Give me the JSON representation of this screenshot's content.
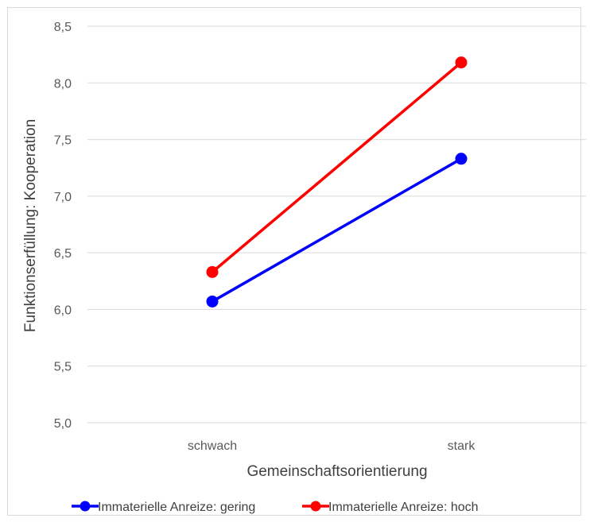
{
  "chart_data": {
    "type": "line",
    "title": "",
    "xlabel": "Gemeinschaftsorientierung",
    "ylabel": "Funktionserfüllung: Kooperation",
    "categories": [
      "schwach",
      "stark"
    ],
    "ylim": [
      5.0,
      8.5
    ],
    "yticks": [
      "5,0",
      "5,5",
      "6,0",
      "6,5",
      "7,0",
      "7,5",
      "8,0",
      "8,5"
    ],
    "ytick_values": [
      5.0,
      5.5,
      6.0,
      6.5,
      7.0,
      7.5,
      8.0,
      8.5
    ],
    "grid": true,
    "legend_position": "bottom",
    "series": [
      {
        "name": "Immaterielle Anreize: gering",
        "values": [
          6.07,
          7.33
        ],
        "color": "#0000ff"
      },
      {
        "name": "Immaterielle Anreize: hoch",
        "values": [
          6.33,
          8.18
        ],
        "color": "#ff0000"
      }
    ]
  }
}
